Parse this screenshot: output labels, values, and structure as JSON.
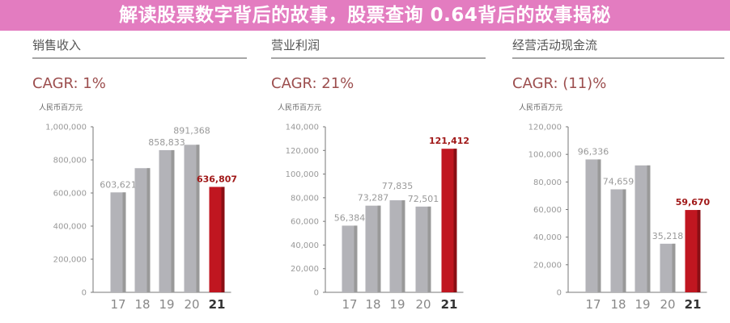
{
  "colors": {
    "gray_bar": "#b3b3b8",
    "highlight_bar": "#c01620",
    "cagr_text": "#9c4e4e",
    "banner": "#e06eb9"
  },
  "banner": {
    "text": "解读股票数字背后的故事，股票查询 0.64背后的故事揭秘"
  },
  "chart_data": [
    {
      "type": "bar",
      "title": "销售收入",
      "subtitle": "CAGR: 1%",
      "ylabel": "人民币百万元",
      "categories": [
        "17",
        "18",
        "19",
        "20",
        "21"
      ],
      "values": [
        603621,
        750000,
        858833,
        891368,
        636807
      ],
      "data_labels": [
        "603,621",
        null,
        "858,833",
        "891,368",
        "636,807"
      ],
      "highlight_index": 4,
      "ylim": [
        0,
        1000000
      ],
      "yticks": [
        "0",
        "200,000",
        "400,000",
        "600,000",
        "800,000",
        "1,000,000"
      ],
      "ytick_values": [
        0,
        200000,
        400000,
        600000,
        800000,
        1000000
      ]
    },
    {
      "type": "bar",
      "title": "营业利润",
      "subtitle": "CAGR: 21%",
      "ylabel": "人民币百万元",
      "categories": [
        "17",
        "18",
        "19",
        "20",
        "21"
      ],
      "values": [
        56384,
        73287,
        77835,
        72501,
        121412
      ],
      "data_labels": [
        "56,384",
        "73,287",
        "77,835",
        "72,501",
        "121,412"
      ],
      "highlight_index": 4,
      "ylim": [
        0,
        140000
      ],
      "yticks": [
        "0",
        "20,000",
        "40,000",
        "60,000",
        "80,000",
        "100,000",
        "120,000",
        "140,000"
      ],
      "ytick_values": [
        0,
        20000,
        40000,
        60000,
        80000,
        100000,
        120000,
        140000
      ]
    },
    {
      "type": "bar",
      "title": "经营活动现金流",
      "subtitle": "CAGR: (11)%",
      "ylabel": "人民币百万元",
      "categories": [
        "17",
        "18",
        "19",
        "20",
        "21"
      ],
      "values": [
        96336,
        74659,
        92000,
        35218,
        59670
      ],
      "data_labels": [
        "96,336",
        "74,659",
        null,
        "35,218",
        "59,670"
      ],
      "highlight_index": 4,
      "ylim": [
        0,
        120000
      ],
      "yticks": [
        "0",
        "20,000",
        "40,000",
        "60,000",
        "80,000",
        "100,000",
        "120,000"
      ],
      "ytick_values": [
        0,
        20000,
        40000,
        60000,
        80000,
        100000,
        120000
      ]
    }
  ]
}
